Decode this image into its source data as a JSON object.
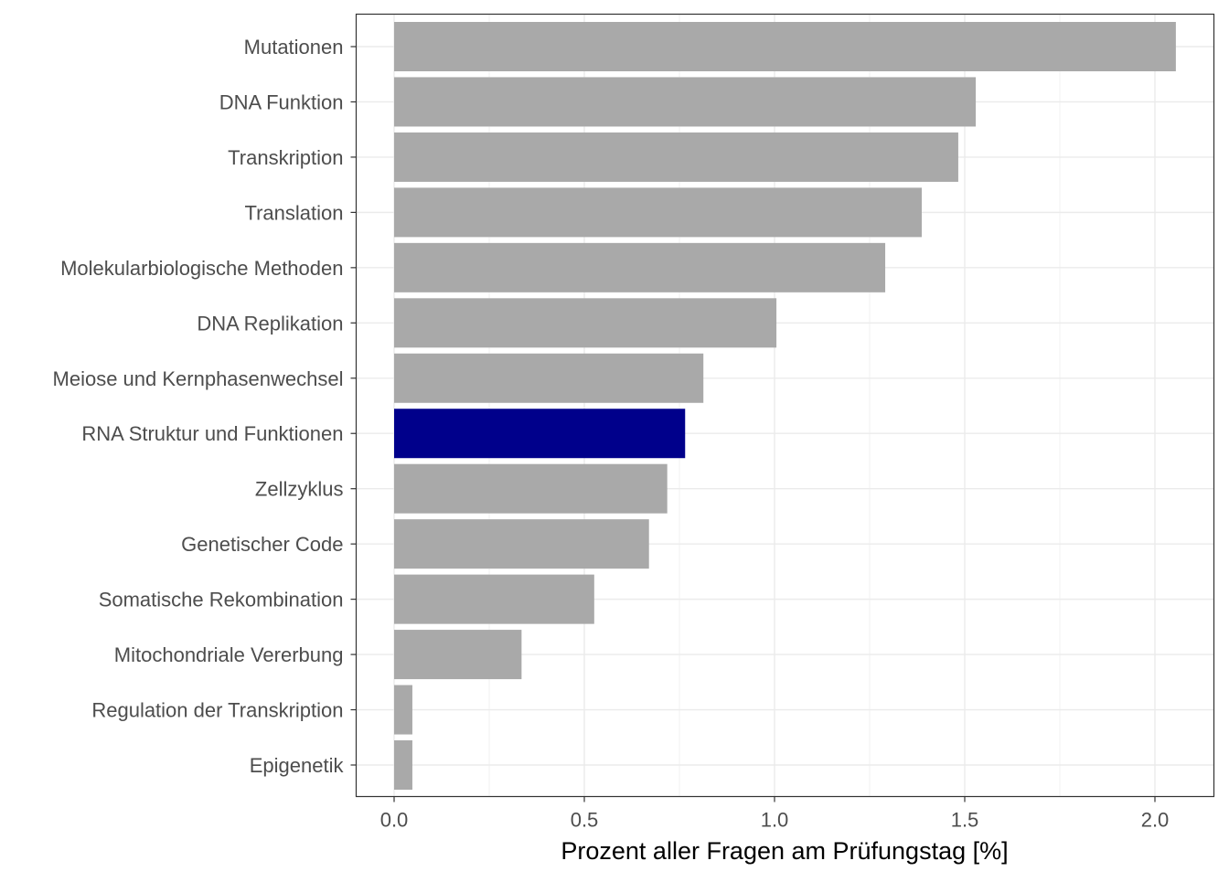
{
  "chart_data": {
    "type": "bar",
    "orientation": "horizontal",
    "title": "",
    "xlabel": "Prozent aller Fragen am Prüfungstag [%]",
    "ylabel": "",
    "xlim": [
      -0.1,
      2.155
    ],
    "xticks": [
      0.0,
      0.5,
      1.0,
      1.5,
      2.0
    ],
    "xtick_labels": [
      "0.0",
      "0.5",
      "1.0",
      "1.5",
      "2.0"
    ],
    "grid": true,
    "categories": [
      "Mutationen",
      "DNA Funktion",
      "Transkription",
      "Translation",
      "Molekularbiologische Methoden",
      "DNA Replikation",
      "Meiose und Kernphasenwechsel",
      "RNA Struktur und Funktionen",
      "Zellzyklus",
      "Genetischer Code",
      "Somatische Rekombination",
      "Mitochondriale Vererbung",
      "Regulation der Transkription",
      "Epigenetik"
    ],
    "values": [
      2.055,
      1.529,
      1.483,
      1.387,
      1.291,
      1.005,
      0.813,
      0.765,
      0.718,
      0.67,
      0.526,
      0.335,
      0.048,
      0.048
    ],
    "highlight": "RNA Struktur und Funktionen",
    "colors": {
      "default": "#a9a9a9",
      "highlight": "#00008b"
    }
  }
}
